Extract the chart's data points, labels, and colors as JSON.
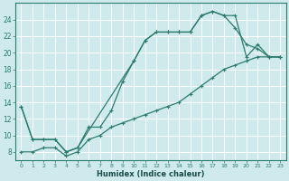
{
  "xlabel": "Humidex (Indice chaleur)",
  "bg_color": "#ceeaec",
  "grid_color": "#b0d8dc",
  "line_color": "#2d7a6e",
  "xlim": [
    -0.5,
    23.5
  ],
  "ylim": [
    7,
    26
  ],
  "yticks": [
    8,
    10,
    12,
    14,
    16,
    18,
    20,
    22,
    24
  ],
  "xticks": [
    0,
    1,
    2,
    3,
    4,
    5,
    6,
    7,
    8,
    9,
    10,
    11,
    12,
    13,
    14,
    15,
    16,
    17,
    18,
    19,
    20,
    21,
    22,
    23
  ],
  "line1_x": [
    0,
    1,
    2,
    3,
    4,
    5,
    6,
    7,
    8,
    9,
    10,
    11,
    12,
    13,
    14,
    15,
    16,
    17,
    18,
    19,
    20,
    21,
    22,
    23
  ],
  "line1_y": [
    13.5,
    9.5,
    9.5,
    9.5,
    8.0,
    8.5,
    11.0,
    11.0,
    13.0,
    16.5,
    19.0,
    21.5,
    22.5,
    22.5,
    22.5,
    22.5,
    24.5,
    25.0,
    24.5,
    24.5,
    19.5,
    21.0,
    19.5,
    19.5
  ],
  "line2_x": [
    0,
    1,
    2,
    3,
    4,
    5,
    10,
    11,
    12,
    13,
    14,
    15,
    16,
    17,
    18,
    19,
    20,
    21,
    22,
    23
  ],
  "line2_y": [
    13.5,
    9.5,
    9.5,
    9.5,
    8.0,
    8.5,
    19.0,
    21.5,
    22.5,
    22.5,
    22.5,
    22.5,
    24.5,
    25.0,
    24.5,
    23.0,
    21.0,
    20.5,
    19.5,
    19.5
  ],
  "line3_x": [
    0,
    1,
    2,
    3,
    4,
    5,
    6,
    7,
    8,
    9,
    10,
    11,
    12,
    13,
    14,
    15,
    16,
    17,
    18,
    19,
    20,
    21,
    22,
    23
  ],
  "line3_y": [
    8.0,
    8.0,
    8.5,
    8.5,
    7.5,
    8.0,
    9.5,
    10.0,
    11.0,
    11.5,
    12.0,
    12.5,
    13.0,
    13.5,
    14.0,
    15.0,
    16.0,
    17.0,
    18.0,
    18.5,
    19.0,
    19.5,
    19.5,
    19.5
  ]
}
